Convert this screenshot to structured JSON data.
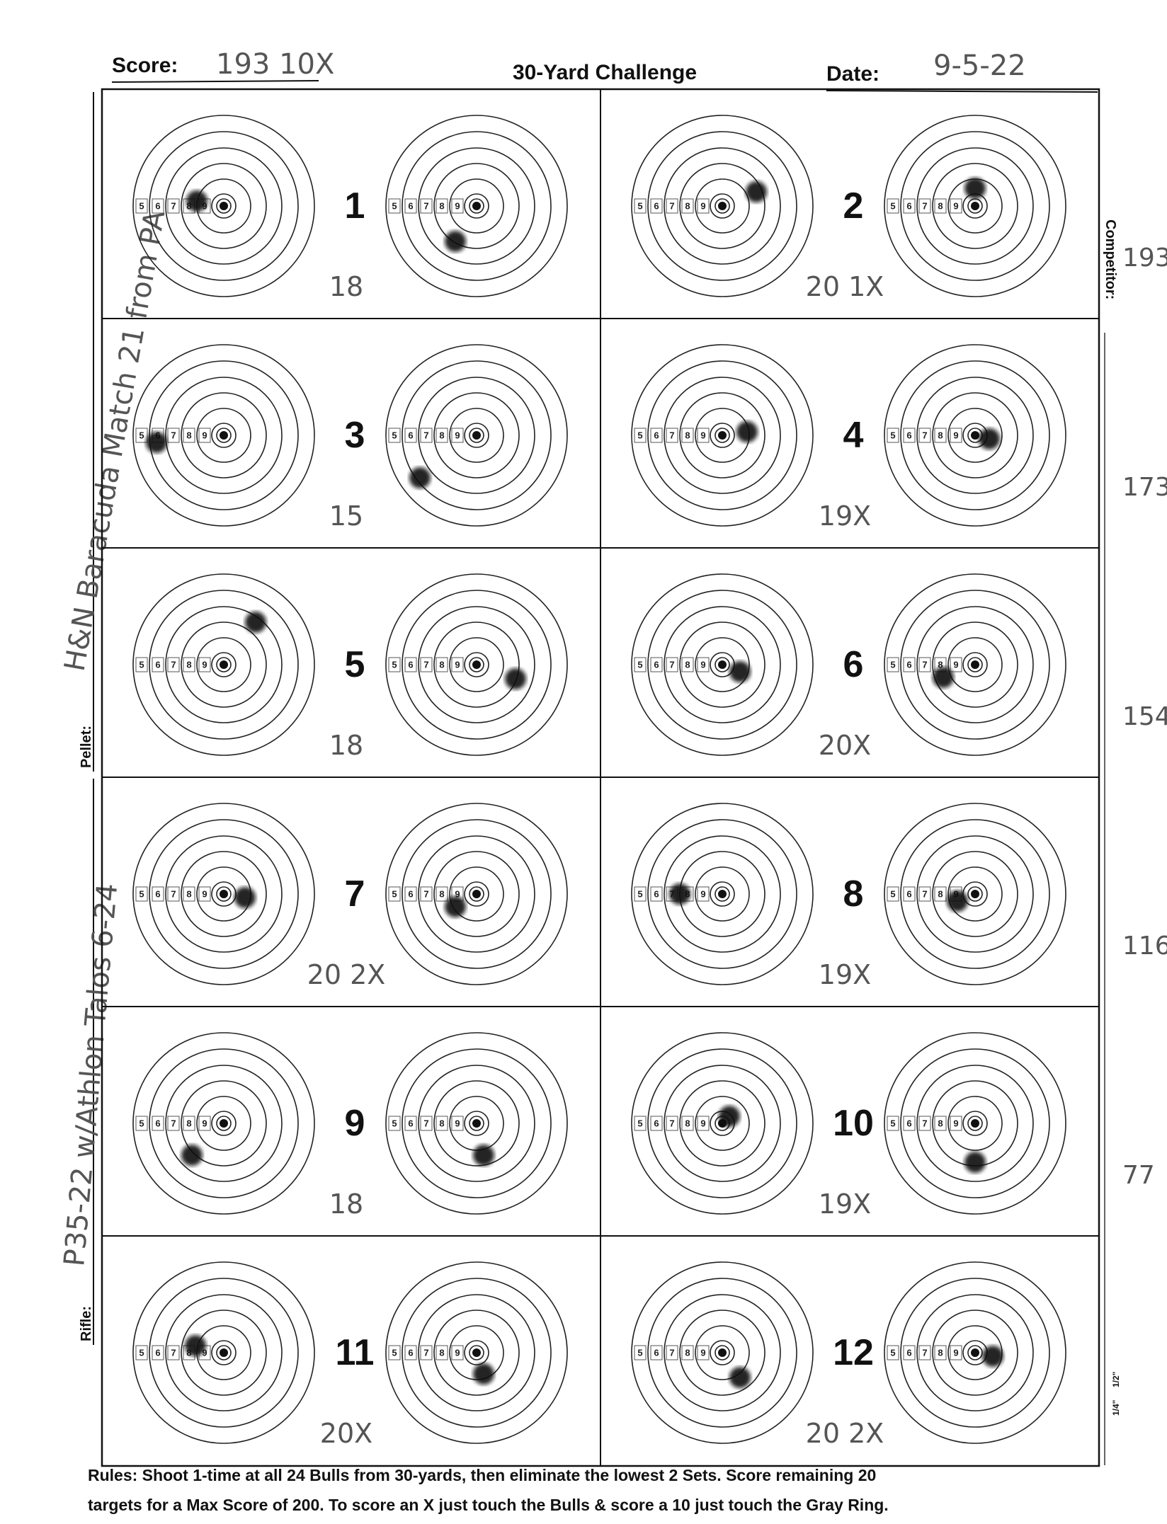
{
  "header": {
    "score_label": "Score:",
    "score": "193 10X",
    "title": "30-Yard Challenge",
    "date_label": "Date:",
    "date": "9-5-22"
  },
  "side": {
    "competitor_label": "Competitor:",
    "pellet_label": "Pellet:",
    "pellet": "H&N Baracuda Match 21 from PA",
    "rifle_label": "Rifle:",
    "rifle": "P35-22 w/Athlon Talos 6-24"
  },
  "running_totals": [
    "193",
    "173",
    "154",
    "116",
    "77"
  ],
  "ring_labels": [
    "5",
    "6",
    "7",
    "8",
    "9"
  ],
  "sets": [
    {
      "number": "1",
      "score": "18"
    },
    {
      "number": "2",
      "score": "20 1X"
    },
    {
      "number": "3",
      "score": "15"
    },
    {
      "number": "4",
      "score": "19X"
    },
    {
      "number": "5",
      "score": "18"
    },
    {
      "number": "6",
      "score": "20X"
    },
    {
      "number": "7",
      "score": "20 2X"
    },
    {
      "number": "8",
      "score": "19X"
    },
    {
      "number": "9",
      "score": "18"
    },
    {
      "number": "10",
      "score": "19X"
    },
    {
      "number": "11",
      "score": "20X"
    },
    {
      "number": "12",
      "score": "20 2X"
    }
  ],
  "ruler": [
    "1/4\"",
    "1/2\""
  ],
  "rules": [
    "Rules: Shoot 1-time at all 24 Bulls from 30-yards, then eliminate the lowest 2 Sets. Score remaining 20",
    "targets for a Max Score of 200. To score an X just touch the Bulls & score a 10 just touch the Gray Ring."
  ]
}
